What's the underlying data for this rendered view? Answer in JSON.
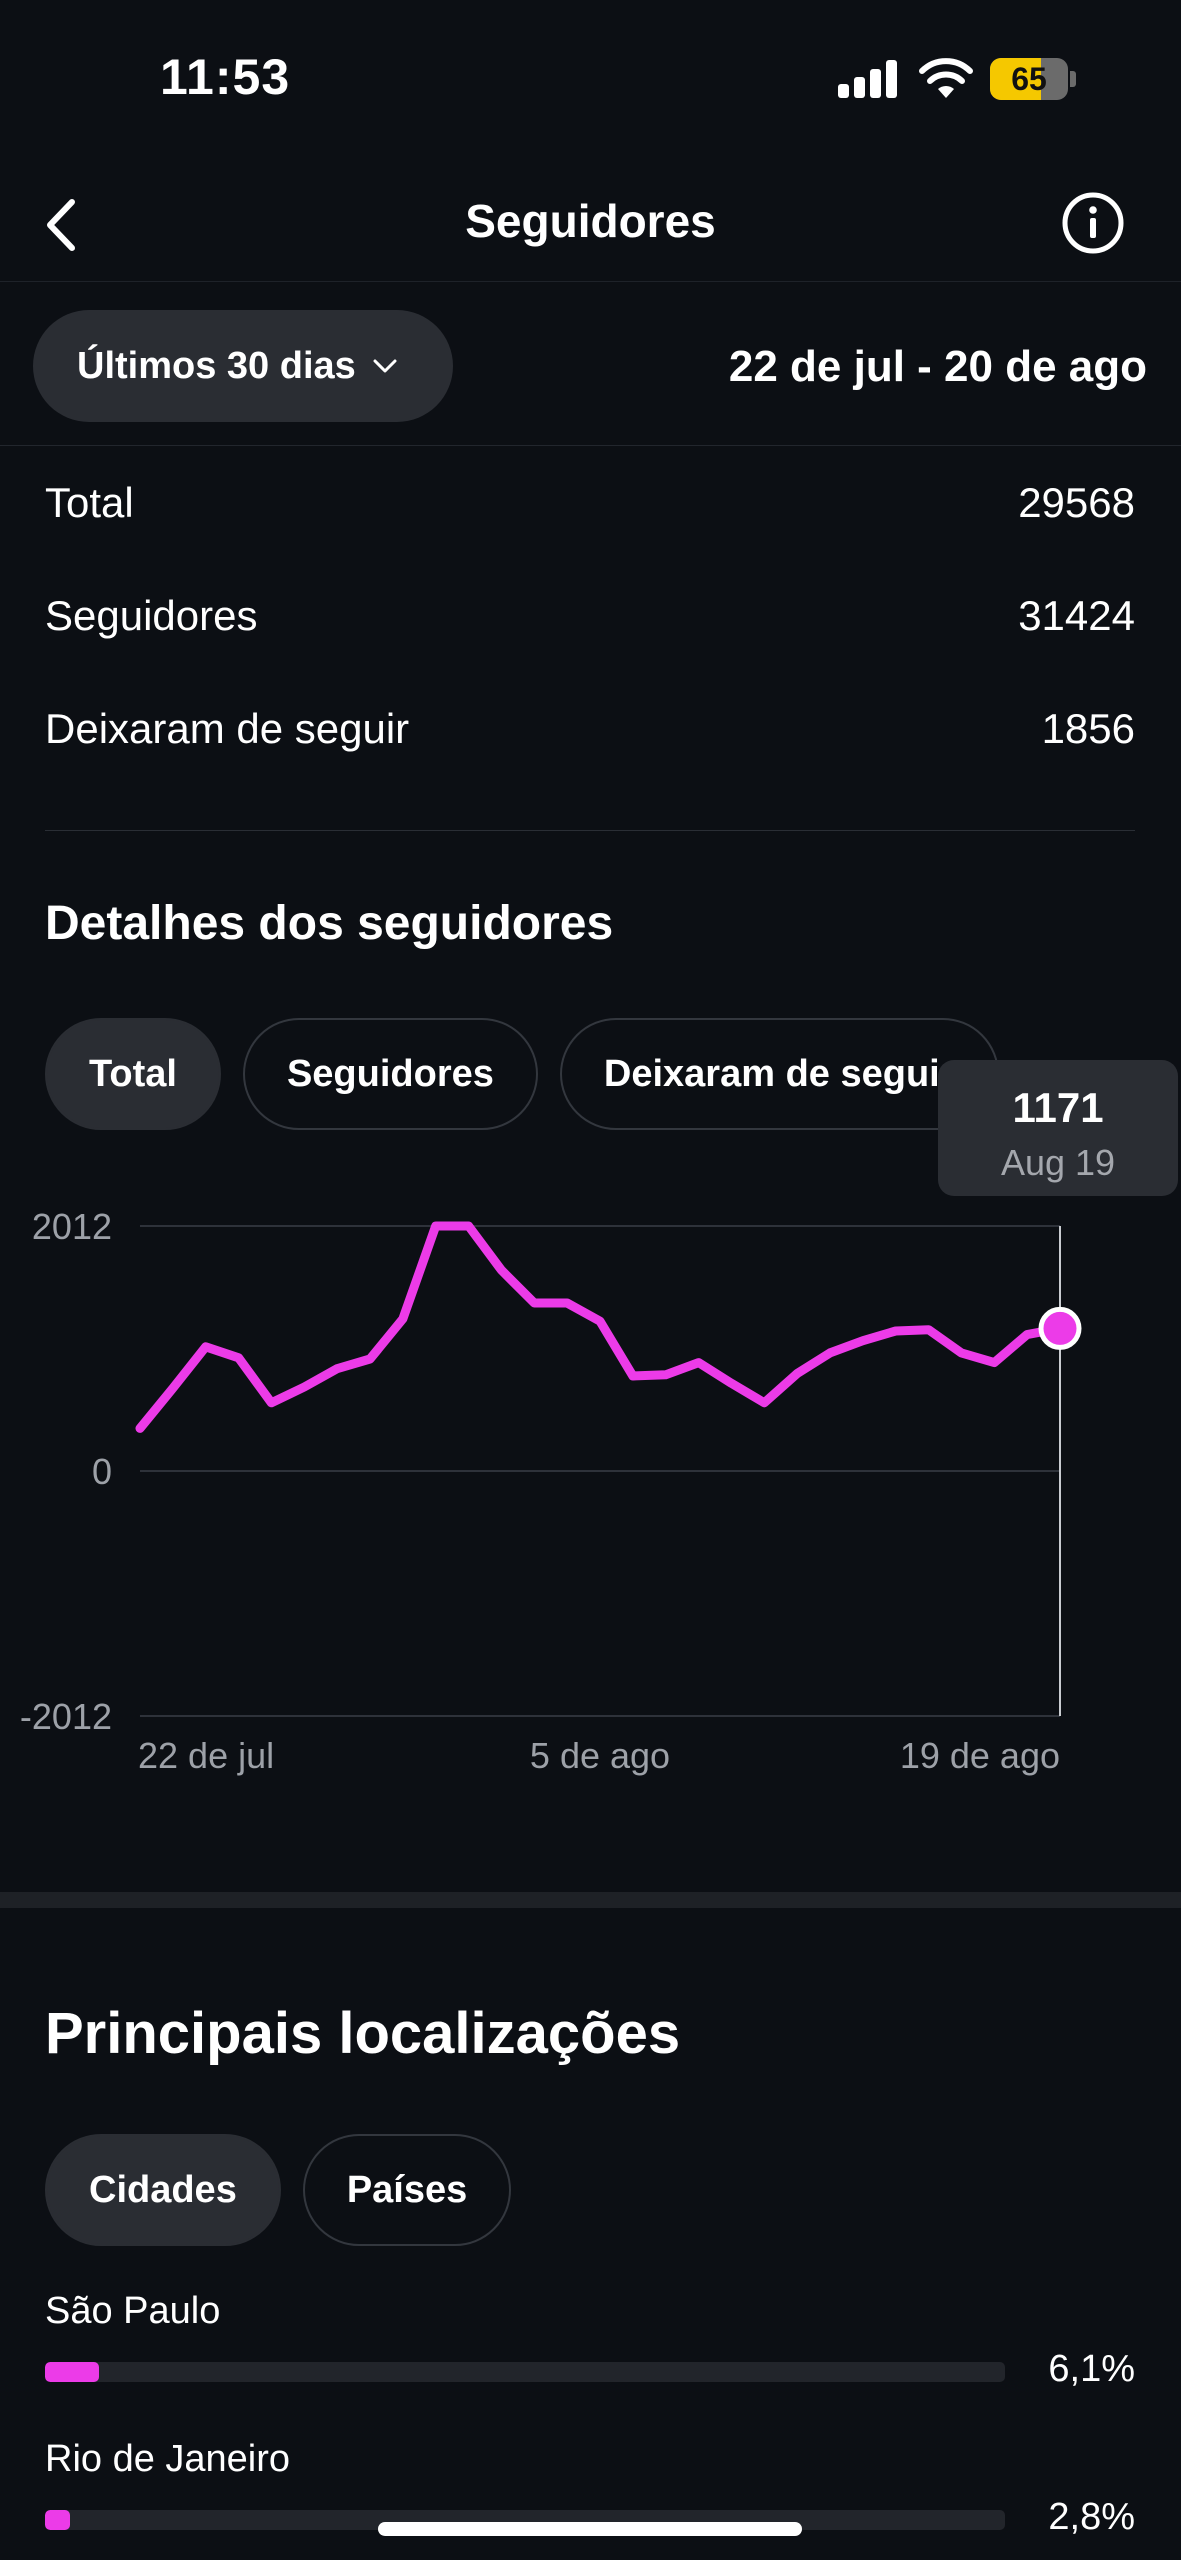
{
  "status_bar": {
    "time": "11:53",
    "battery": "65",
    "battery_level": 0.65
  },
  "header": {
    "title": "Seguidores"
  },
  "filter": {
    "period_label": "Últimos 30 dias",
    "date_range": "22 de jul - 20 de ago"
  },
  "stats": [
    {
      "label": "Total",
      "value": "29568"
    },
    {
      "label": "Seguidores",
      "value": "31424"
    },
    {
      "label": "Deixaram de seguir",
      "value": "1856"
    }
  ],
  "details": {
    "title": "Detalhes dos seguidores",
    "chips": [
      "Total",
      "Seguidores",
      "Deixaram de seguir"
    ],
    "active_chip": 0,
    "tooltip": {
      "value": "1171",
      "date": "Aug 19"
    }
  },
  "chart_data": {
    "type": "line",
    "x": [
      "22 de jul",
      "23 de jul",
      "24 de jul",
      "25 de jul",
      "26 de jul",
      "27 de jul",
      "28 de jul",
      "29 de jul",
      "30 de jul",
      "31 de jul",
      "1 de ago",
      "2 de ago",
      "3 de ago",
      "4 de ago",
      "5 de ago",
      "6 de ago",
      "7 de ago",
      "8 de ago",
      "9 de ago",
      "10 de ago",
      "11 de ago",
      "12 de ago",
      "13 de ago",
      "14 de ago",
      "15 de ago",
      "16 de ago",
      "17 de ago",
      "18 de ago",
      "19 de ago"
    ],
    "series": [
      {
        "values": [
          350,
          680,
          1020,
          930,
          560,
          690,
          840,
          920,
          1250,
          2012,
          2012,
          1650,
          1380,
          1380,
          1230,
          780,
          790,
          890,
          720,
          560,
          800,
          970,
          1070,
          1150,
          1160,
          970,
          890,
          1120,
          1171
        ]
      }
    ],
    "ylim": [
      -2012,
      2012
    ],
    "yticks": [
      "2012",
      "0",
      "-2012"
    ],
    "xticks": [
      "22 de jul",
      "5 de ago",
      "19 de ago"
    ],
    "xtick_index": [
      0,
      14,
      28
    ],
    "highlight_index": 28,
    "line_color": "#ec3be8",
    "grid": true
  },
  "locations": {
    "title": "Principais localizações",
    "tabs": [
      "Cidades",
      "Países"
    ],
    "active_tab": 0,
    "items": [
      {
        "name": "São Paulo",
        "percent": "6,1%",
        "fraction": 0.061
      },
      {
        "name": "Rio de Janeiro",
        "percent": "2,8%",
        "fraction": 0.028
      }
    ]
  },
  "colors": {
    "background": "#0c0f14",
    "accent": "#ec3be8",
    "chip_active": "#2a2d33"
  }
}
